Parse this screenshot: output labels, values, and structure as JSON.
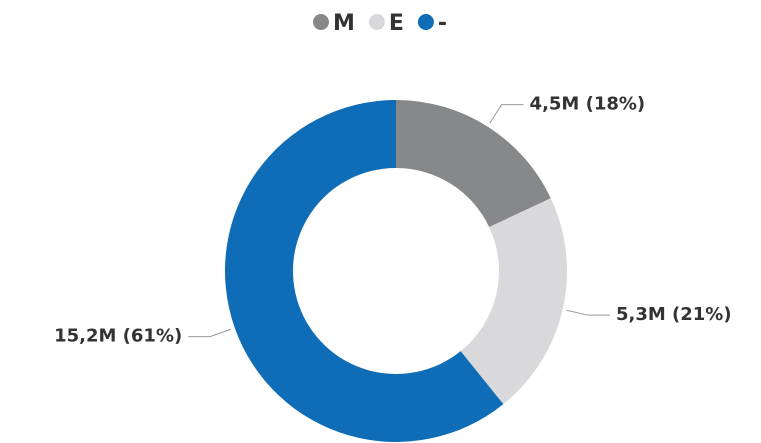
{
  "chart_data": {
    "type": "donut",
    "categories": [
      "M",
      "E",
      "-"
    ],
    "values": [
      4500000,
      5300000,
      15200000
    ],
    "value_labels": [
      "4,5M (18%)",
      "5,3M (21%)",
      "15,2M (61%)"
    ],
    "colors": [
      "#87888a",
      "#d9d9db",
      "#0f6cb6"
    ],
    "legend": "top"
  }
}
